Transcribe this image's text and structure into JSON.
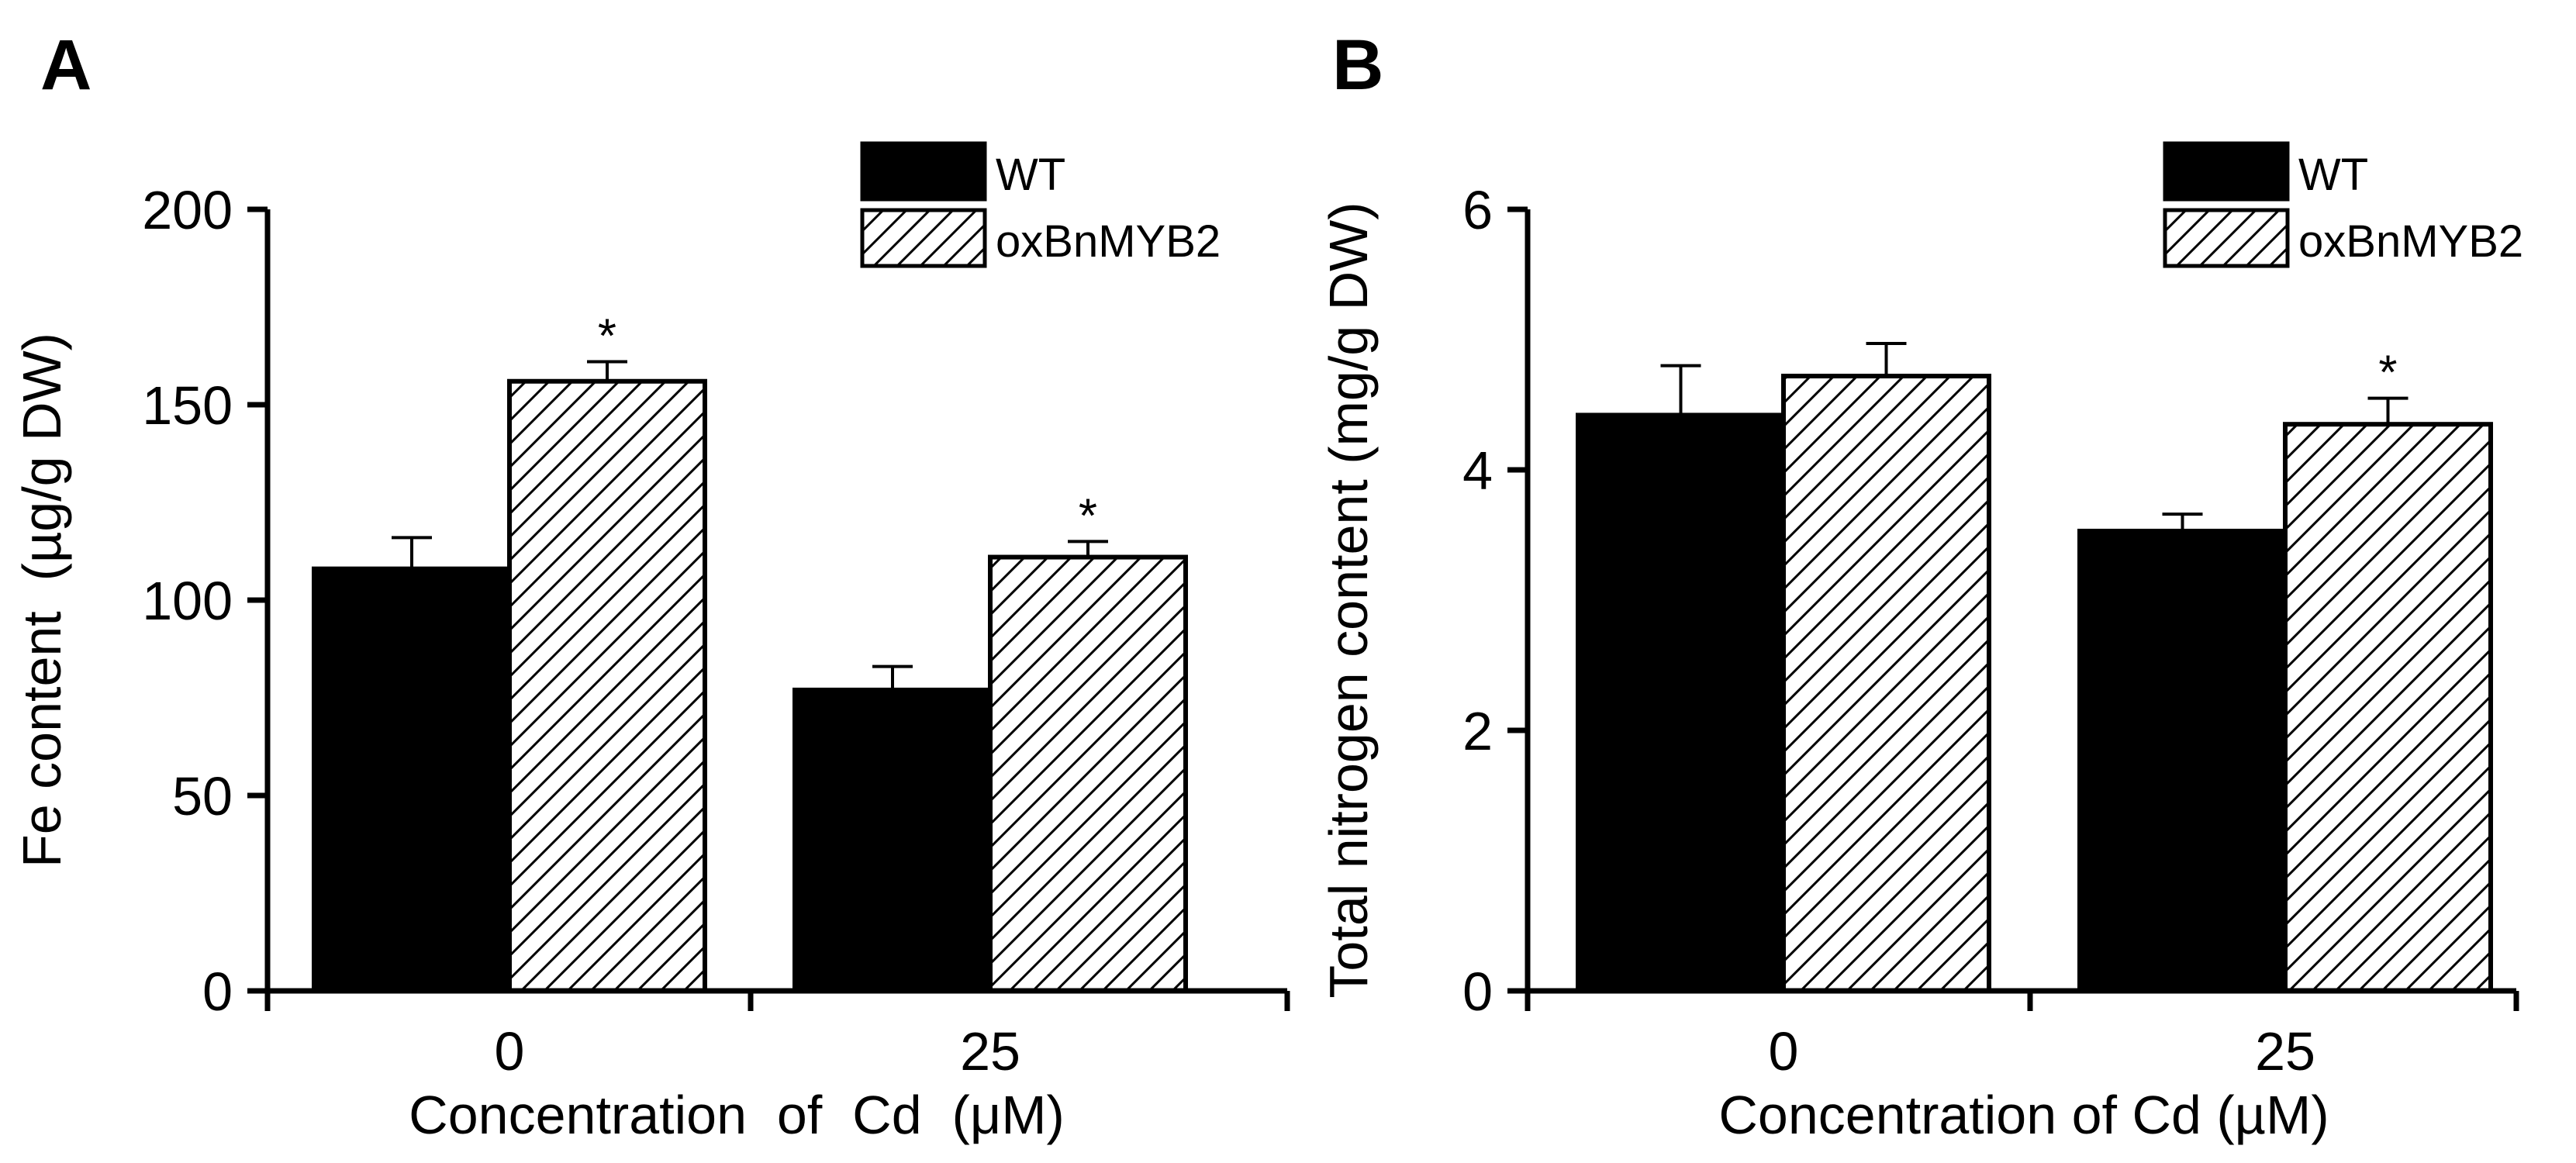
{
  "chart_data": [
    {
      "type": "bar",
      "panel_label": "A",
      "categories": [
        "0",
        "25"
      ],
      "series": [
        {
          "name": "WT",
          "fill": "solid",
          "values": [
            108,
            77
          ],
          "errors": [
            8,
            6
          ],
          "significance": [
            "",
            ""
          ]
        },
        {
          "name": "oxBnMYB2",
          "fill": "hatched",
          "values": [
            156,
            111
          ],
          "errors": [
            5,
            4
          ],
          "significance": [
            "*",
            "*"
          ]
        }
      ],
      "ylabel": "Fe content  (µg/g DW)",
      "xlabel": "Concentration  of  Cd  (μM)",
      "yticks": [
        0,
        50,
        100,
        150,
        200
      ],
      "ylim": [
        0,
        200
      ],
      "legend_position": "top-right"
    },
    {
      "type": "bar",
      "panel_label": "B",
      "categories": [
        "0",
        "25"
      ],
      "series": [
        {
          "name": "WT",
          "fill": "solid",
          "values": [
            4.42,
            3.53
          ],
          "errors": [
            0.38,
            0.13
          ],
          "significance": [
            "",
            ""
          ]
        },
        {
          "name": "oxBnMYB2",
          "fill": "hatched",
          "values": [
            4.72,
            4.35
          ],
          "errors": [
            0.25,
            0.2
          ],
          "significance": [
            "",
            "*"
          ]
        }
      ],
      "ylabel": "Total nitrogen content (mg/g DW)",
      "xlabel": "Concentration of Cd (µM)",
      "yticks": [
        0,
        2,
        4,
        6
      ],
      "ylim": [
        0,
        6
      ],
      "legend_position": "top-right"
    }
  ],
  "colors": {
    "bar_solid": "#000000",
    "bar_hatch_bg": "#ffffff",
    "stroke": "#000000"
  }
}
